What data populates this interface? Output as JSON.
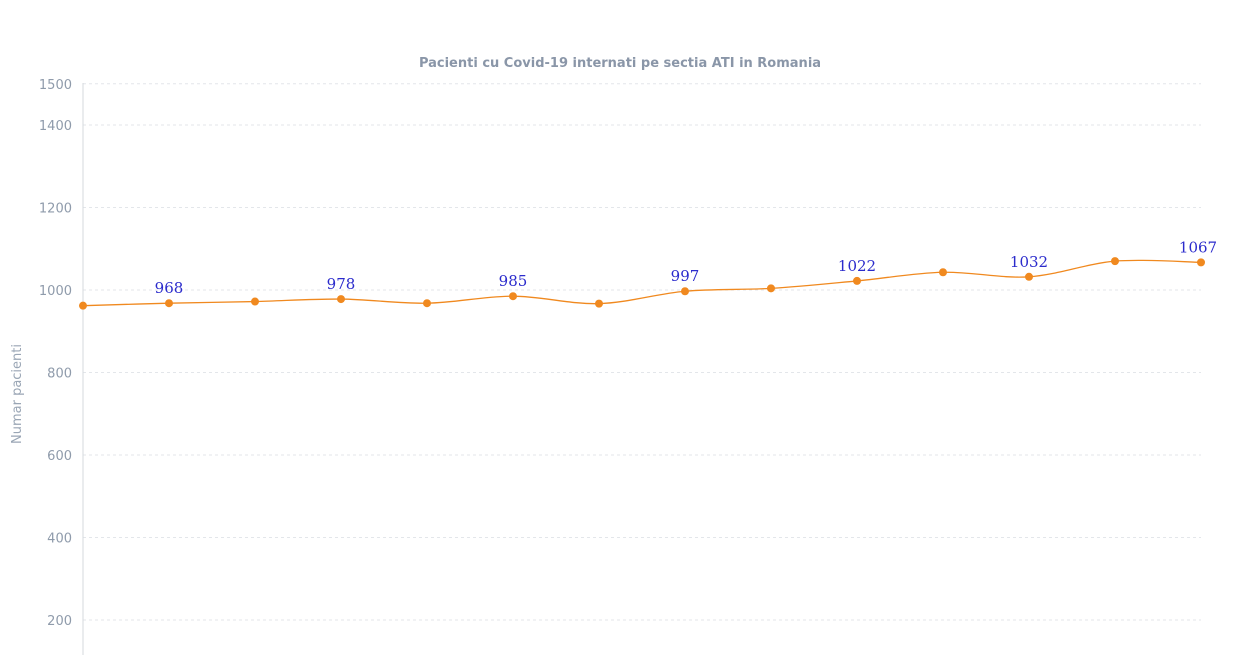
{
  "chart_data": {
    "type": "line",
    "title": "Pacienti cu Covid-19 internati pe sectia ATI in Romania",
    "xlabel": "",
    "ylabel": "Numar pacienti",
    "ylim": [
      140,
      1500
    ],
    "yticks": [
      200,
      400,
      600,
      800,
      1000,
      1200,
      1400,
      1500
    ],
    "grid": true,
    "series": [
      {
        "name": "",
        "color": "#f0891f",
        "values": [
          962,
          968,
          972,
          978,
          968,
          985,
          967,
          997,
          1004,
          1022,
          1043,
          1032,
          1070,
          1067
        ],
        "labels": [
          "",
          "968",
          "",
          "978",
          "",
          "985",
          "",
          "997",
          "",
          "1022",
          "",
          "1032",
          "",
          "1067"
        ]
      }
    ]
  }
}
